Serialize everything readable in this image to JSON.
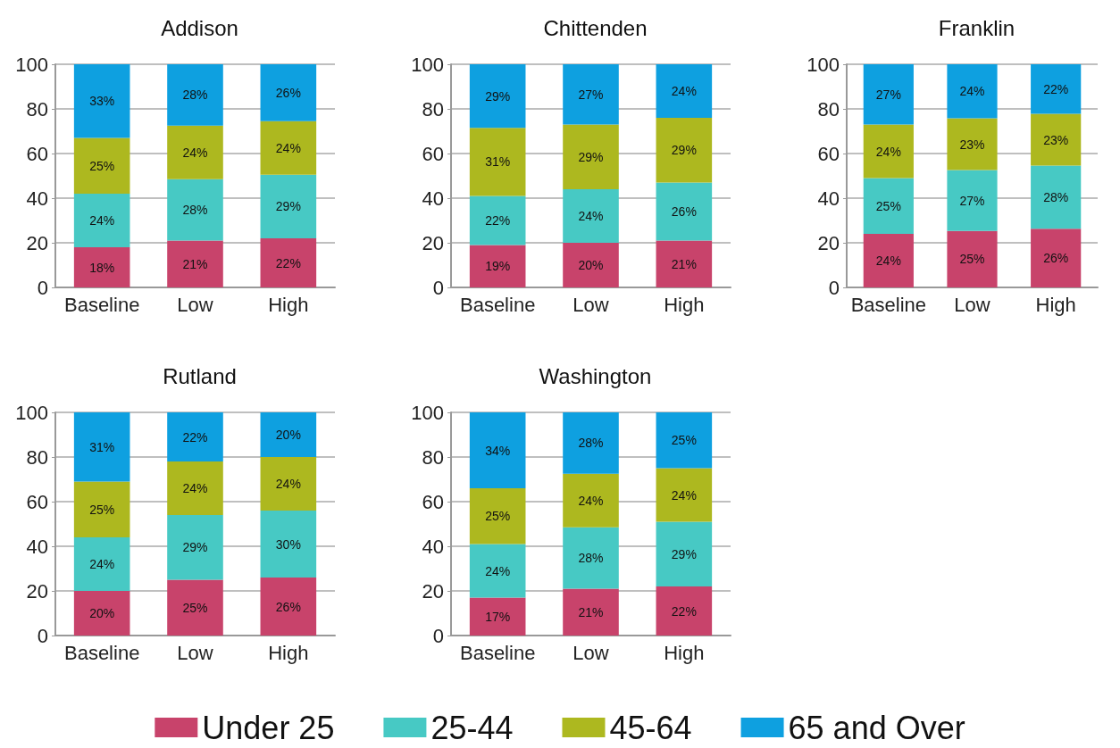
{
  "chart_data": [
    {
      "type": "bar",
      "title": "Addison",
      "categories": [
        "Baseline",
        "Low",
        "High"
      ],
      "stacked": true,
      "ylim": [
        0,
        100
      ],
      "yticks": [
        0,
        20,
        40,
        60,
        80,
        100
      ],
      "grid": "y",
      "legend": false,
      "series": [
        {
          "color": "#c8436b",
          "values": [
            18,
            21,
            22
          ],
          "value_labels": [
            "18%",
            "21%",
            "22%"
          ]
        },
        {
          "color": "#47c9c4",
          "values": [
            24,
            27.5,
            28.5
          ],
          "value_labels": [
            "24%",
            "28%",
            "29%"
          ]
        },
        {
          "color": "#adb81f",
          "values": [
            25,
            24,
            24
          ],
          "value_labels": [
            "25%",
            "24%",
            "24%"
          ]
        },
        {
          "color": "#0ea0e0",
          "values": [
            33,
            27.5,
            25.5
          ],
          "value_labels": [
            "33%",
            "28%",
            "26%"
          ]
        }
      ]
    },
    {
      "type": "bar",
      "title": "Chittenden",
      "categories": [
        "Baseline",
        "Low",
        "High"
      ],
      "stacked": true,
      "ylim": [
        0,
        100
      ],
      "yticks": [
        0,
        20,
        40,
        60,
        80,
        100
      ],
      "grid": "y",
      "legend": false,
      "series": [
        {
          "color": "#c8436b",
          "values": [
            19,
            20,
            21
          ],
          "value_labels": [
            "19%",
            "20%",
            "21%"
          ]
        },
        {
          "color": "#47c9c4",
          "values": [
            22,
            24,
            26
          ],
          "value_labels": [
            "22%",
            "24%",
            "26%"
          ]
        },
        {
          "color": "#adb81f",
          "values": [
            30.5,
            29,
            29
          ],
          "value_labels": [
            "31%",
            "29%",
            "29%"
          ]
        },
        {
          "color": "#0ea0e0",
          "values": [
            28.5,
            27,
            24
          ],
          "value_labels": [
            "29%",
            "27%",
            "24%"
          ]
        }
      ]
    },
    {
      "type": "bar",
      "title": "Franklin",
      "categories": [
        "Baseline",
        "Low",
        "High"
      ],
      "stacked": true,
      "ylim": [
        0,
        100
      ],
      "yticks": [
        0,
        20,
        40,
        60,
        80,
        100
      ],
      "grid": "y",
      "legend": false,
      "series": [
        {
          "color": "#c8436b",
          "values": [
            24,
            25.3,
            26.3
          ],
          "value_labels": [
            "24%",
            "25%",
            "26%"
          ]
        },
        {
          "color": "#47c9c4",
          "values": [
            25,
            27.3,
            28.3
          ],
          "value_labels": [
            "25%",
            "27%",
            "28%"
          ]
        },
        {
          "color": "#adb81f",
          "values": [
            24,
            23.2,
            23.2
          ],
          "value_labels": [
            "24%",
            "23%",
            "23%"
          ]
        },
        {
          "color": "#0ea0e0",
          "values": [
            27,
            24.2,
            22.2
          ],
          "value_labels": [
            "27%",
            "24%",
            "22%"
          ]
        }
      ]
    },
    {
      "type": "bar",
      "title": "Rutland",
      "categories": [
        "Baseline",
        "Low",
        "High"
      ],
      "stacked": true,
      "ylim": [
        0,
        100
      ],
      "yticks": [
        0,
        20,
        40,
        60,
        80,
        100
      ],
      "grid": "y",
      "legend": false,
      "series": [
        {
          "color": "#c8436b",
          "values": [
            20,
            25,
            26
          ],
          "value_labels": [
            "20%",
            "25%",
            "26%"
          ]
        },
        {
          "color": "#47c9c4",
          "values": [
            24,
            29,
            30
          ],
          "value_labels": [
            "24%",
            "29%",
            "30%"
          ]
        },
        {
          "color": "#adb81f",
          "values": [
            25,
            24,
            24
          ],
          "value_labels": [
            "25%",
            "24%",
            "24%"
          ]
        },
        {
          "color": "#0ea0e0",
          "values": [
            31,
            22,
            20
          ],
          "value_labels": [
            "31%",
            "22%",
            "20%"
          ]
        }
      ]
    },
    {
      "type": "bar",
      "title": "Washington",
      "categories": [
        "Baseline",
        "Low",
        "High"
      ],
      "stacked": true,
      "ylim": [
        0,
        100
      ],
      "yticks": [
        0,
        20,
        40,
        60,
        80,
        100
      ],
      "grid": "y",
      "legend": "bottom",
      "series": [
        {
          "name": "Under 25",
          "color": "#c8436b",
          "values": [
            17,
            21,
            22
          ],
          "value_labels": [
            "17%",
            "21%",
            "22%"
          ]
        },
        {
          "name": "25-44",
          "color": "#47c9c4",
          "values": [
            24,
            27.5,
            29
          ],
          "value_labels": [
            "24%",
            "28%",
            "29%"
          ]
        },
        {
          "name": "45-64",
          "color": "#adb81f",
          "values": [
            25,
            24,
            24
          ],
          "value_labels": [
            "25%",
            "24%",
            "24%"
          ]
        },
        {
          "name": "65 and Over",
          "color": "#0ea0e0",
          "values": [
            34,
            27.5,
            25
          ],
          "value_labels": [
            "34%",
            "28%",
            "25%"
          ]
        }
      ]
    }
  ]
}
